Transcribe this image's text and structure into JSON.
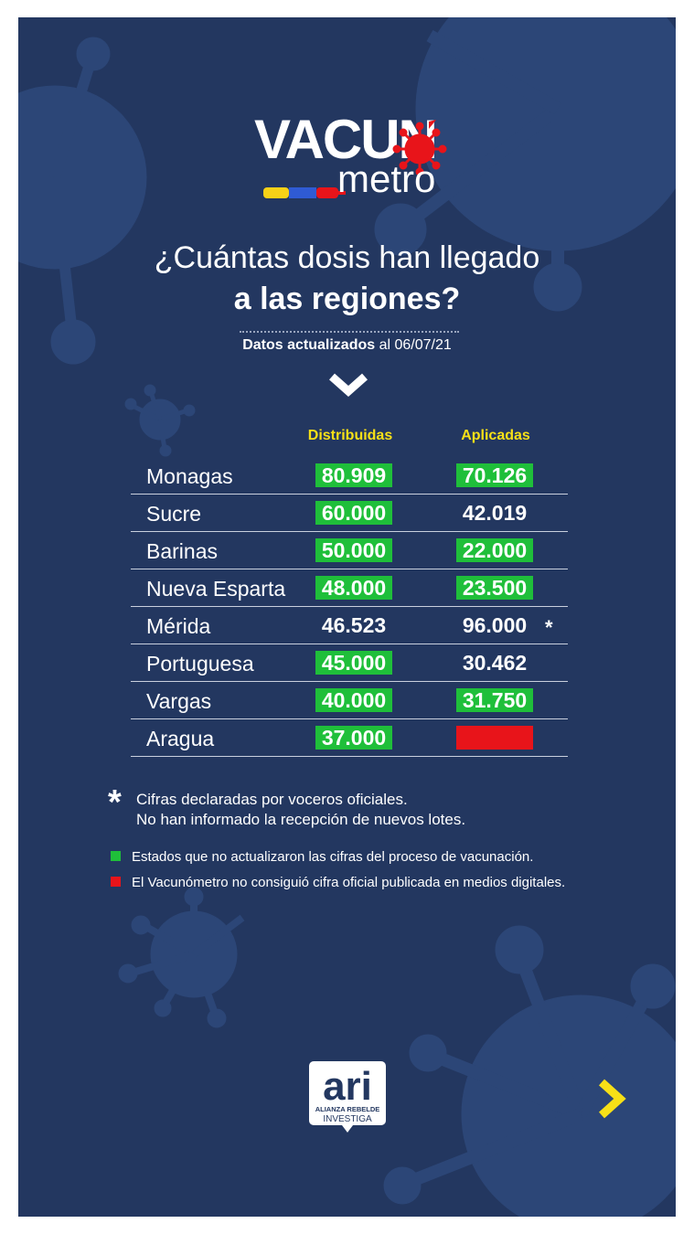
{
  "logo": {
    "word1": "VACUN",
    "word2": "metro",
    "colors": [
      "#f7d117",
      "#2f5bd4",
      "#e8141a"
    ]
  },
  "title": {
    "line1": "¿Cuántas dosis han llegado",
    "line2": "a las regiones?"
  },
  "updated": {
    "label": "Datos actualizados",
    "date_text": "al 06/07/21"
  },
  "table": {
    "headers": {
      "distribuidas": "Distribuidas",
      "aplicadas": "Aplicadas"
    },
    "rows": [
      {
        "region": "Monagas",
        "distribuidas": "80.909",
        "aplicadas": "70.126"
      },
      {
        "region": "Sucre",
        "distribuidas": "60.000",
        "aplicadas": "42.019"
      },
      {
        "region": "Barinas",
        "distribuidas": "50.000",
        "aplicadas": "22.000"
      },
      {
        "region": "Nueva Esparta",
        "distribuidas": "48.000",
        "aplicadas": "23.500"
      },
      {
        "region": "Mérida",
        "distribuidas": "46.523",
        "aplicadas": "96.000",
        "mark": "*"
      },
      {
        "region": "Portuguesa",
        "distribuidas": "45.000",
        "aplicadas": "30.462"
      },
      {
        "region": "Vargas",
        "distribuidas": "40.000",
        "aplicadas": "31.750"
      },
      {
        "region": "Aragua",
        "distribuidas": "37.000",
        "aplicadas": ""
      }
    ],
    "highlight_colors": {
      "green": "#1fbf3a",
      "red": "#e8141a"
    }
  },
  "notes": {
    "star_symbol": "*",
    "star_line1": "Cifras declaradas por voceros oficiales.",
    "star_line2": "No han informado la recepción de nuevos lotes.",
    "legend_green": "Estados que no actualizaron las cifras del proceso de vacunación.",
    "legend_red": "El Vacunómetro no consiguió cifra oficial publicada en medios digitales."
  },
  "footer": {
    "ari_logo": "ari",
    "ari_line1": "ALIANZA REBELDE",
    "ari_line2": "INVESTIGA",
    "next_icon": "chevron-right-icon"
  },
  "colors": {
    "background": "#233760",
    "accent_yellow": "#f7e017",
    "virus": "#2c4677"
  }
}
